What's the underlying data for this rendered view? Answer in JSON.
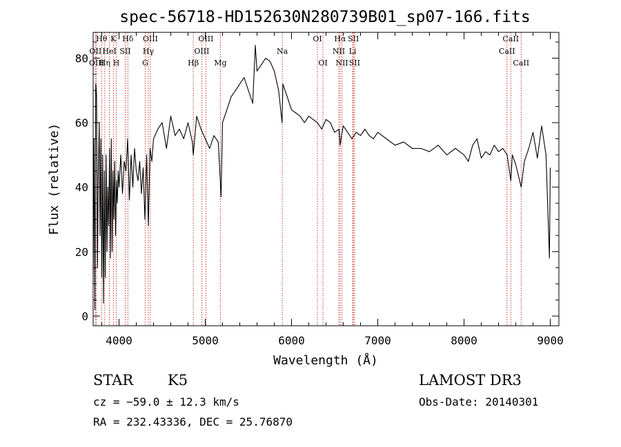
{
  "chart_data": {
    "type": "line",
    "title": "spec-56718-HD152630N280739B01_sp07-166.fits",
    "xlabel": "Wavelength (Å)",
    "ylabel": "Flux (relative)",
    "xlim": [
      3700,
      9100
    ],
    "ylim": [
      -3,
      88
    ],
    "xticks": [
      4000,
      5000,
      6000,
      7000,
      8000,
      9000
    ],
    "yticks": [
      0,
      20,
      40,
      60,
      80
    ],
    "grid": false,
    "series": [
      {
        "x": [
          3700,
          3710,
          3720,
          3730,
          3740,
          3750,
          3760,
          3770,
          3780,
          3790,
          3800,
          3810,
          3820,
          3830,
          3840,
          3850,
          3860,
          3870,
          3880,
          3890,
          3900,
          3910,
          3920,
          3930,
          3940,
          3950,
          3960,
          3970,
          3980,
          3990,
          4000,
          4020,
          4040,
          4060,
          4080,
          4100,
          4120,
          4140,
          4160,
          4180,
          4200,
          4220,
          4240,
          4260,
          4280,
          4300,
          4320,
          4340,
          4360,
          4380,
          4400,
          4450,
          4500,
          4550,
          4600,
          4650,
          4700,
          4750,
          4800,
          4850,
          4861,
          4900,
          4950,
          5000,
          5050,
          5100,
          5150,
          5170,
          5183,
          5200,
          5250,
          5300,
          5350,
          5400,
          5450,
          5500,
          5550,
          5580,
          5600,
          5650,
          5700,
          5750,
          5800,
          5850,
          5890,
          5900,
          5950,
          6000,
          6050,
          6100,
          6150,
          6200,
          6250,
          6300,
          6350,
          6400,
          6450,
          6500,
          6550,
          6563,
          6580,
          6600,
          6650,
          6700,
          6750,
          6800,
          6850,
          6900,
          6950,
          7000,
          7100,
          7200,
          7300,
          7400,
          7500,
          7600,
          7700,
          7800,
          7900,
          8000,
          8050,
          8100,
          8150,
          8200,
          8250,
          8300,
          8350,
          8400,
          8450,
          8500,
          8542,
          8560,
          8600,
          8662,
          8700,
          8750,
          8800,
          8850,
          8900,
          8950,
          8990,
          9000
        ],
        "y": [
          10,
          55,
          2,
          72,
          68,
          15,
          45,
          60,
          25,
          55,
          12,
          50,
          4,
          45,
          12,
          50,
          20,
          40,
          28,
          52,
          18,
          55,
          20,
          45,
          30,
          48,
          25,
          42,
          35,
          45,
          40,
          50,
          38,
          48,
          45,
          55,
          36,
          50,
          40,
          52,
          45,
          42,
          48,
          38,
          46,
          30,
          50,
          28,
          52,
          48,
          55,
          58,
          60,
          52,
          62,
          56,
          58,
          55,
          60,
          54,
          50,
          62,
          58,
          55,
          52,
          56,
          54,
          44,
          37,
          60,
          64,
          68,
          70,
          72,
          74,
          70,
          66,
          84,
          76,
          78,
          80,
          79,
          76,
          70,
          60,
          72,
          68,
          64,
          63,
          62,
          60,
          62,
          61,
          60,
          58,
          61,
          60,
          57,
          58,
          53,
          56,
          59,
          57,
          55,
          57,
          56,
          58,
          56,
          55,
          57,
          55,
          53,
          54,
          52,
          52,
          51,
          53,
          50,
          52,
          50,
          48,
          53,
          55,
          49,
          51,
          50,
          53,
          51,
          52,
          50,
          42,
          50,
          47,
          40,
          48,
          52,
          57,
          49,
          59,
          50,
          18,
          46
        ]
      }
    ],
    "line_marks": [
      {
        "label": "Hθ",
        "x": 3798,
        "row": 1
      },
      {
        "label": "OII",
        "x": 3727,
        "row": 2
      },
      {
        "label": "OIII",
        "x": 3740,
        "row": 3
      },
      {
        "label": "K",
        "x": 3934,
        "row": 1
      },
      {
        "label": "HeI",
        "x": 3889,
        "row": 2
      },
      {
        "label": "Hη",
        "x": 3835,
        "row": 3
      },
      {
        "label": "H",
        "x": 3968,
        "row": 3
      },
      {
        "label": "Hδ",
        "x": 4102,
        "row": 1
      },
      {
        "label": "SII",
        "x": 4072,
        "row": 2
      },
      {
        "label": "OIII",
        "x": 4363,
        "row": 1
      },
      {
        "label": "Hγ",
        "x": 4340,
        "row": 2
      },
      {
        "label": "G",
        "x": 4304,
        "row": 3
      },
      {
        "label": "Hβ",
        "x": 4861,
        "row": 3
      },
      {
        "label": "OIII",
        "x": 5007,
        "row": 1
      },
      {
        "label": "OIII",
        "x": 4959,
        "row": 2
      },
      {
        "label": "Mg",
        "x": 5175,
        "row": 3
      },
      {
        "label": "Na",
        "x": 5893,
        "row": 2
      },
      {
        "label": "OI",
        "x": 6300,
        "row": 1
      },
      {
        "label": "OI",
        "x": 6364,
        "row": 3
      },
      {
        "label": "Hα",
        "x": 6563,
        "row": 1
      },
      {
        "label": "NII",
        "x": 6548,
        "row": 2
      },
      {
        "label": "NII",
        "x": 6584,
        "row": 3
      },
      {
        "label": "SII",
        "x": 6717,
        "row": 1
      },
      {
        "label": "Li",
        "x": 6708,
        "row": 2
      },
      {
        "label": "SII",
        "x": 6731,
        "row": 3
      },
      {
        "label": "CaII",
        "x": 8542,
        "row": 1
      },
      {
        "label": "CaII",
        "x": 8498,
        "row": 2
      },
      {
        "label": "CaII",
        "x": 8662,
        "row": 3
      }
    ],
    "line_mark_color": "#c00000",
    "line_color": "#000000"
  },
  "info": {
    "class_label": "STAR",
    "subclass_label": "K5",
    "survey_label": "LAMOST DR3",
    "cz_text": "cz = −59.0 ± 12.3 km/s",
    "obs_date_text": "Obs-Date: 20140301",
    "radec_text": "RA = 232.43336, DEC =  25.76870"
  }
}
